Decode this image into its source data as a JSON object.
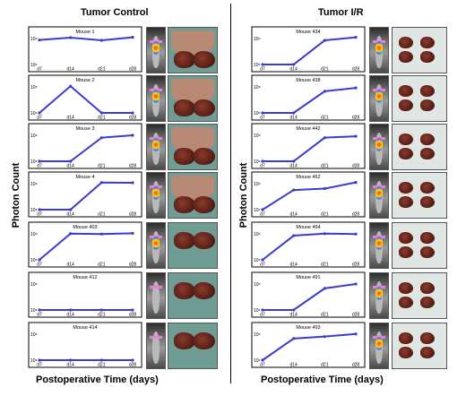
{
  "figure": {
    "left_title": "Tumor Control",
    "right_title": "Tumor I/R",
    "ylabel": "Photon Count",
    "xlabel": "Postoperative Time (days)"
  },
  "chart_data": [
    {
      "type": "line",
      "title": "Mouse 1",
      "x": [
        "d7",
        "d14",
        "d21",
        "d28"
      ],
      "values": [
        58000000.0,
        86000000.0,
        55000000.0,
        91000000.0
      ],
      "yticks": [
        "10⁸",
        "10⁶"
      ],
      "line_color": "#3b3bd0"
    },
    {
      "type": "line",
      "title": "Mouse 2",
      "x": [
        "d7",
        "d14",
        "d21",
        "d28"
      ],
      "values": [
        1000000.0,
        84000000.0,
        1000000.0,
        1000000.0
      ],
      "yticks": [
        "10⁸",
        "10⁶"
      ],
      "line_color": "#3b3bd0"
    },
    {
      "type": "line",
      "title": "Mouse 3",
      "x": [
        "d7",
        "d14",
        "d21",
        "d28"
      ],
      "values": [
        1000000.0,
        1000000.0,
        50000000.0,
        74000000.0
      ],
      "yticks": [
        "10⁸",
        "10⁶"
      ],
      "line_color": "#3b3bd0"
    },
    {
      "type": "line",
      "title": "Mouse 4",
      "x": [
        "d7",
        "d14",
        "d21",
        "d28"
      ],
      "values": [
        1000000.0,
        1000000.0,
        90000000.0,
        86000000.0
      ],
      "yticks": [
        "10⁸",
        "10⁶"
      ],
      "line_color": "#3b3bd0"
    },
    {
      "type": "line",
      "title": "Mouse 403",
      "x": [
        "d7",
        "d14",
        "d21",
        "d28"
      ],
      "values": [
        1000000.0,
        77000000.0,
        72000000.0,
        81000000.0
      ],
      "yticks": [
        "10⁸",
        "10⁶"
      ],
      "line_color": "#3b3bd0"
    },
    {
      "type": "line",
      "title": "Mouse 412",
      "x": [
        "d7",
        "d14",
        "d21",
        "d28"
      ],
      "values": [
        1000000.0,
        1000000.0,
        1000000.0,
        1000000.0
      ],
      "yticks": [
        "10⁸",
        "10⁶"
      ],
      "line_color": "#3b3bd0"
    },
    {
      "type": "line",
      "title": "Mouse 414",
      "x": [
        "d7",
        "d14",
        "d21",
        "d28"
      ],
      "values": [
        1000000.0,
        1000000.0,
        1000000.0,
        1000000.0
      ],
      "yticks": [
        "10⁸",
        "10⁶"
      ],
      "line_color": "#3b3bd0"
    },
    {
      "type": "line",
      "title": "Mouse 434",
      "x": [
        "d7",
        "d14",
        "d21",
        "d28"
      ],
      "values": [
        1000000.0,
        1000000.0,
        55000000.0,
        91000000.0
      ],
      "yticks": [
        "10⁸",
        "10⁶"
      ],
      "line_color": "#3b3bd0"
    },
    {
      "type": "line",
      "title": "Mouse 438",
      "x": [
        "d7",
        "d14",
        "d21",
        "d28"
      ],
      "values": [
        1000000.0,
        1000000.0,
        36000000.0,
        63000000.0
      ],
      "yticks": [
        "10⁸",
        "10⁶"
      ],
      "line_color": "#3b3bd0"
    },
    {
      "type": "line",
      "title": "Mouse 442",
      "x": [
        "d7",
        "d14",
        "d21",
        "d28"
      ],
      "values": [
        1000000.0,
        1000000.0,
        50000000.0,
        63000000.0
      ],
      "yticks": [
        "10⁸",
        "10⁶"
      ],
      "line_color": "#3b3bd0"
    },
    {
      "type": "line",
      "title": "Mouse 462",
      "x": [
        "d7",
        "d14",
        "d21",
        "d28"
      ],
      "values": [
        1000000.0,
        26000000.0,
        33000000.0,
        91000000.0
      ],
      "yticks": [
        "10⁸",
        "10⁶"
      ],
      "line_color": "#3b3bd0"
    },
    {
      "type": "line",
      "title": "Mouse 464",
      "x": [
        "d7",
        "d14",
        "d21",
        "d28"
      ],
      "values": [
        1000000.0,
        55000000.0,
        77000000.0,
        72000000.0
      ],
      "yticks": [
        "10⁸",
        "10⁶"
      ],
      "line_color": "#3b3bd0"
    },
    {
      "type": "line",
      "title": "Mouse 491",
      "x": [
        "d7",
        "d14",
        "d21",
        "d28"
      ],
      "values": [
        1000000.0,
        1000000.0,
        36000000.0,
        74000000.0
      ],
      "yticks": [
        "10⁸",
        "10⁶"
      ],
      "line_color": "#3b3bd0"
    },
    {
      "type": "line",
      "title": "Mouse 493",
      "x": [
        "d7",
        "d14",
        "d21",
        "d28"
      ],
      "values": [
        1000000.0,
        36000000.0,
        50000000.0,
        77000000.0
      ],
      "yticks": [
        "10⁸",
        "10⁶"
      ],
      "line_color": "#3b3bd0"
    }
  ]
}
